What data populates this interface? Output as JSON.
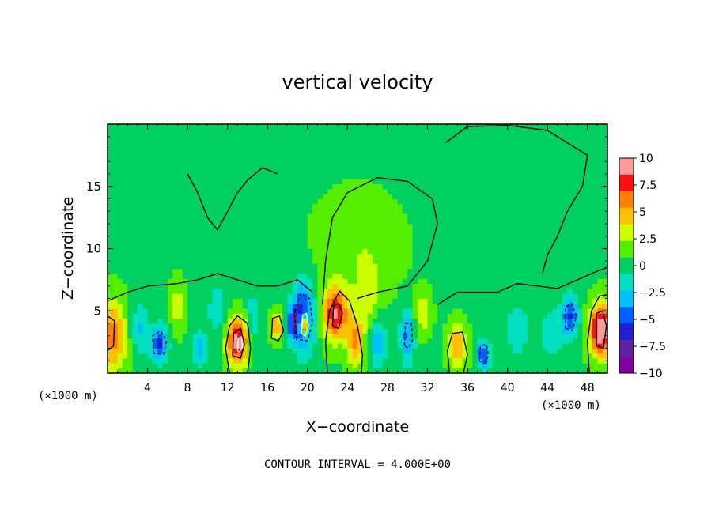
{
  "chart_data": {
    "type": "heatmap",
    "title": "vertical velocity",
    "xlabel": "X−coordinate",
    "ylabel": "Z−coordinate",
    "x_unit_left": "(×1000 m)",
    "x_unit_right": "(×1000 m)",
    "xlim": [
      0,
      50
    ],
    "ylim": [
      0,
      20
    ],
    "x_ticks": [
      "4",
      "8",
      "12",
      "16",
      "20",
      "24",
      "28",
      "32",
      "36",
      "40",
      "44",
      "48"
    ],
    "y_ticks": [
      "5",
      "10",
      "15"
    ],
    "colorbar": {
      "range": [
        -10,
        10
      ],
      "labels": [
        "10",
        "7.5",
        "5",
        "2.5",
        "0",
        "−2.5",
        "−5",
        "−7.5",
        "−10"
      ],
      "colors": [
        "#ff9a9a",
        "#ff1010",
        "#ff8000",
        "#ffc000",
        "#ccff00",
        "#55ee00",
        "#00d060",
        "#00e0c0",
        "#00c0ff",
        "#0060ff",
        "#2020d0",
        "#6020a0",
        "#8000a0"
      ]
    },
    "footer": "CONTOUR INTERVAL = 4.000E+00",
    "contour_interval": 4.0,
    "background_value": 0.5,
    "features": [
      {
        "x": 0.5,
        "z": 3.0,
        "value": 6.0,
        "sx": 1.0,
        "sz": 2.0
      },
      {
        "x": 3.2,
        "z": 3.5,
        "value": -3.0,
        "sx": 0.7,
        "sz": 1.5
      },
      {
        "x": 5.2,
        "z": 2.4,
        "value": -6.5,
        "sx": 0.6,
        "sz": 1.0
      },
      {
        "x": 7.0,
        "z": 5.5,
        "value": 2.5,
        "sx": 0.5,
        "sz": 1.5
      },
      {
        "x": 9.2,
        "z": 2.0,
        "value": -4.0,
        "sx": 0.5,
        "sz": 1.0
      },
      {
        "x": 11.0,
        "z": 5.0,
        "value": -2.0,
        "sx": 0.8,
        "sz": 2.0
      },
      {
        "x": 13.0,
        "z": 2.6,
        "value": 9.0,
        "sx": 0.8,
        "sz": 1.4
      },
      {
        "x": 14.5,
        "z": 4.0,
        "value": -2.5,
        "sx": 0.6,
        "sz": 2.0
      },
      {
        "x": 17.0,
        "z": 3.7,
        "value": 5.0,
        "sx": 0.5,
        "sz": 0.8
      },
      {
        "x": 18.5,
        "z": 4.0,
        "value": -5.0,
        "sx": 0.5,
        "sz": 1.0
      },
      {
        "x": 19.6,
        "z": 4.6,
        "value": -7.0,
        "sx": 0.8,
        "sz": 2.0
      },
      {
        "x": 19.7,
        "z": 3.9,
        "value": 11.0,
        "sx": 0.3,
        "sz": 0.6
      },
      {
        "x": 22.8,
        "z": 4.8,
        "value": 8.0,
        "sx": 0.9,
        "sz": 1.5
      },
      {
        "x": 24.8,
        "z": 2.5,
        "value": 5.0,
        "sx": 0.6,
        "sz": 1.4
      },
      {
        "x": 26.0,
        "z": 6.0,
        "value": 2.5,
        "sx": 0.8,
        "sz": 2.0
      },
      {
        "x": 27.0,
        "z": 2.5,
        "value": -4.0,
        "sx": 0.6,
        "sz": 1.4
      },
      {
        "x": 30.0,
        "z": 3.0,
        "value": -5.0,
        "sx": 0.5,
        "sz": 1.6
      },
      {
        "x": 31.5,
        "z": 4.8,
        "value": 3.0,
        "sx": 0.6,
        "sz": 1.2
      },
      {
        "x": 35.0,
        "z": 2.2,
        "value": 5.0,
        "sx": 0.7,
        "sz": 1.2
      },
      {
        "x": 37.6,
        "z": 1.5,
        "value": -6.0,
        "sx": 0.5,
        "sz": 0.8
      },
      {
        "x": 41.0,
        "z": 3.5,
        "value": -2.0,
        "sx": 1.0,
        "sz": 2.0
      },
      {
        "x": 44.5,
        "z": 3.2,
        "value": -2.5,
        "sx": 0.8,
        "sz": 1.5
      },
      {
        "x": 46.3,
        "z": 4.6,
        "value": -6.0,
        "sx": 0.6,
        "sz": 1.2
      },
      {
        "x": 49.4,
        "z": 3.5,
        "value": 10.0,
        "sx": 0.8,
        "sz": 1.5
      },
      {
        "x": 25.0,
        "z": 10.0,
        "value": 1.5,
        "sx": 3.0,
        "sz": 3.0
      },
      {
        "x": 10.0,
        "z": 12.5,
        "value": -1.0,
        "sx": 3.0,
        "sz": 2.5
      }
    ],
    "contour_lines": [
      {
        "level": 0,
        "points": [
          [
            21.5,
            5.5
          ],
          [
            21.8,
            9
          ],
          [
            22.5,
            12.5
          ],
          [
            24,
            14.5
          ],
          [
            27,
            15.7
          ],
          [
            30,
            15.4
          ],
          [
            32.5,
            14
          ],
          [
            33,
            12
          ],
          [
            32,
            9
          ],
          [
            30,
            7
          ],
          [
            27,
            6.5
          ],
          [
            25,
            6
          ]
        ]
      },
      {
        "level": 0,
        "points": [
          [
            33.8,
            18.5
          ],
          [
            36,
            19.8
          ],
          [
            40,
            19.9
          ],
          [
            44,
            19.5
          ],
          [
            46,
            18.5
          ],
          [
            48,
            17.5
          ],
          [
            47.5,
            15
          ],
          [
            46,
            13
          ],
          [
            45,
            11
          ],
          [
            44,
            9.5
          ],
          [
            43.5,
            8
          ]
        ]
      },
      {
        "level": 0,
        "points": [
          [
            8,
            16
          ],
          [
            9,
            14.5
          ],
          [
            10,
            12.5
          ],
          [
            11,
            11.5
          ],
          [
            12,
            13
          ],
          [
            13,
            14.5
          ],
          [
            14,
            15.5
          ],
          [
            15.5,
            16.5
          ],
          [
            17,
            16
          ]
        ]
      },
      {
        "level": 0,
        "points": [
          [
            0,
            5.8
          ],
          [
            2,
            6.5
          ],
          [
            4,
            7
          ],
          [
            7,
            7.2
          ],
          [
            9,
            7.5
          ],
          [
            11,
            8
          ],
          [
            13,
            7.5
          ],
          [
            15,
            7
          ],
          [
            17,
            7
          ],
          [
            19,
            7.5
          ],
          [
            20.5,
            6.5
          ]
        ]
      },
      {
        "level": 0,
        "points": [
          [
            33,
            5.5
          ],
          [
            35,
            6.5
          ],
          [
            37,
            6.5
          ],
          [
            39,
            6.5
          ],
          [
            41,
            7.2
          ],
          [
            43,
            7
          ],
          [
            45,
            6.8
          ],
          [
            47,
            7.5
          ],
          [
            49,
            8.2
          ],
          [
            50,
            8.5
          ]
        ]
      },
      {
        "level": 0,
        "points": [
          [
            12.2,
            0
          ],
          [
            11.8,
            2
          ],
          [
            12.2,
            3.8
          ],
          [
            13,
            4.6
          ],
          [
            14,
            4
          ],
          [
            14.3,
            2
          ],
          [
            14,
            0
          ]
        ]
      },
      {
        "level": 0,
        "points": [
          [
            22,
            0
          ],
          [
            21.8,
            2.5
          ],
          [
            22.2,
            5
          ],
          [
            23.2,
            6.6
          ],
          [
            24.2,
            5.8
          ],
          [
            25,
            3.8
          ],
          [
            25.5,
            1.5
          ],
          [
            25.4,
            0
          ]
        ]
      },
      {
        "level": 0,
        "points": [
          [
            34.2,
            0
          ],
          [
            34,
            1.8
          ],
          [
            34.5,
            3.2
          ],
          [
            35.5,
            3.3
          ],
          [
            36,
            1.5
          ],
          [
            35.6,
            0
          ]
        ]
      },
      {
        "level": 0,
        "points": [
          [
            48.2,
            0
          ],
          [
            48,
            2.5
          ],
          [
            48.4,
            5
          ],
          [
            49.2,
            6.2
          ],
          [
            50,
            6.3
          ]
        ]
      },
      {
        "level": 0,
        "points": [
          [
            16.4,
            2.8
          ],
          [
            16.5,
            4.4
          ],
          [
            17.2,
            4.6
          ],
          [
            17.6,
            3.4
          ],
          [
            17.1,
            2.6
          ],
          [
            16.4,
            2.8
          ]
        ]
      },
      {
        "level": 4,
        "points": [
          [
            12.5,
            1.4
          ],
          [
            12.6,
            3.2
          ],
          [
            13.3,
            3.6
          ],
          [
            13.7,
            2.3
          ],
          [
            13.3,
            1.2
          ],
          [
            12.5,
            1.4
          ]
        ]
      },
      {
        "level": 4,
        "points": [
          [
            22.5,
            3.8
          ],
          [
            22.6,
            5.4
          ],
          [
            23.1,
            5.6
          ],
          [
            23.5,
            4.8
          ],
          [
            23.1,
            3.6
          ],
          [
            22.5,
            3.8
          ]
        ]
      },
      {
        "level": 4,
        "points": [
          [
            48.9,
            2.2
          ],
          [
            48.9,
            4.8
          ],
          [
            49.5,
            5
          ],
          [
            49.9,
            3.8
          ],
          [
            49.6,
            2
          ],
          [
            48.9,
            2.2
          ]
        ]
      },
      {
        "level": 4,
        "points": [
          [
            0,
            1.8
          ],
          [
            0.6,
            2.2
          ],
          [
            0.7,
            4.2
          ],
          [
            0,
            4.6
          ]
        ]
      },
      {
        "level": 8,
        "points": [
          [
            19.4,
            3.2
          ],
          [
            19.5,
            4.6
          ],
          [
            19.9,
            4.8
          ],
          [
            20.1,
            3.8
          ],
          [
            19.8,
            3
          ],
          [
            19.4,
            3.2
          ]
        ]
      },
      {
        "level": 8,
        "points": [
          [
            13,
            1.8
          ],
          [
            13.1,
            2.8
          ],
          [
            13.4,
            2.9
          ],
          [
            13.5,
            2.1
          ],
          [
            13.2,
            1.7
          ],
          [
            13,
            1.8
          ]
        ]
      },
      {
        "level": -4,
        "points": [
          [
            18.9,
            2.7
          ],
          [
            18.7,
            4.8
          ],
          [
            19.3,
            6.4
          ],
          [
            20.2,
            6.0
          ],
          [
            20.5,
            4.0
          ],
          [
            20.0,
            2.6
          ],
          [
            18.9,
            2.7
          ]
        ]
      },
      {
        "level": -4,
        "points": [
          [
            4.6,
            1.6
          ],
          [
            4.5,
            3
          ],
          [
            5.3,
            3.4
          ],
          [
            5.9,
            2.6
          ],
          [
            5.6,
            1.5
          ],
          [
            4.6,
            1.6
          ]
        ]
      },
      {
        "level": -4,
        "points": [
          [
            45.8,
            3.6
          ],
          [
            45.8,
            5.3
          ],
          [
            46.4,
            5.6
          ],
          [
            46.9,
            4.6
          ],
          [
            46.5,
            3.4
          ],
          [
            45.8,
            3.6
          ]
        ]
      },
      {
        "level": -4,
        "points": [
          [
            37.2,
            1.0
          ],
          [
            37.3,
            2.2
          ],
          [
            37.9,
            2.3
          ],
          [
            38.1,
            1.4
          ],
          [
            37.7,
            0.8
          ],
          [
            37.2,
            1.0
          ]
        ]
      },
      {
        "level": -4,
        "points": [
          [
            29.7,
            2.2
          ],
          [
            29.8,
            4.0
          ],
          [
            30.4,
            4.0
          ],
          [
            30.5,
            2.6
          ],
          [
            30.1,
            2.0
          ],
          [
            29.7,
            2.2
          ]
        ]
      }
    ]
  }
}
